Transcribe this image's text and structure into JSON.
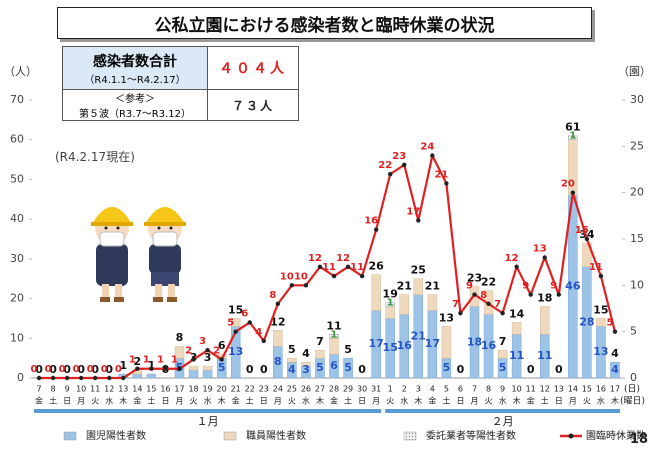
{
  "title": "公私立園における感染者数と臨時休業の状況",
  "summary": {
    "label": "感染者数合計",
    "period": "（R4.1.1〜R4.2.17）",
    "value_label": "４０４人",
    "ref_label": "＜参考＞",
    "ref_period": "第５波（R3.7〜R3.12）",
    "ref_value_label": "７３人"
  },
  "note": "(R4.2.17現在)",
  "page_number": "18",
  "chart_data": {
    "type": "bar",
    "stacked": true,
    "ylabel": "（人）",
    "y2label": "（園）",
    "xlabel": "(日)",
    "weekday_label": "(曜日)",
    "months": [
      "１月",
      "２月"
    ],
    "categories": [
      "7",
      "8",
      "9",
      "10",
      "11",
      "12",
      "13",
      "14",
      "15",
      "16",
      "17",
      "18",
      "19",
      "20",
      "21",
      "22",
      "23",
      "24",
      "25",
      "26",
      "27",
      "28",
      "29",
      "30",
      "31",
      "1",
      "2",
      "3",
      "4",
      "5",
      "6",
      "7",
      "8",
      "9",
      "10",
      "11",
      "12",
      "13",
      "14",
      "15",
      "16",
      "17"
    ],
    "weekdays": [
      "金",
      "土",
      "日",
      "月",
      "火",
      "水",
      "木",
      "金",
      "土",
      "日",
      "月",
      "火",
      "水",
      "木",
      "金",
      "土",
      "日",
      "月",
      "火",
      "水",
      "木",
      "金",
      "土",
      "日",
      "月",
      "火",
      "水",
      "木",
      "金",
      "土",
      "日",
      "月",
      "火",
      "水",
      "木",
      "金",
      "土",
      "日",
      "月",
      "火",
      "水",
      "木"
    ],
    "ylim": [
      0,
      70
    ],
    "yticks": [
      0,
      10,
      20,
      30,
      40,
      50,
      60,
      70
    ],
    "y2lim": [
      0,
      30
    ],
    "y2ticks": [
      0,
      5,
      10,
      15,
      20,
      25,
      30
    ],
    "series": [
      {
        "name": "園児陽性者数",
        "color": "#9dc3e6",
        "values": [
          0,
          0,
          0,
          0,
          0,
          0,
          1,
          1,
          1,
          0,
          5,
          2,
          2,
          5,
          13,
          0,
          0,
          8,
          4,
          3,
          5,
          6,
          5,
          0,
          17,
          15,
          16,
          21,
          17,
          5,
          0,
          18,
          16,
          5,
          11,
          0,
          11,
          0,
          46,
          28,
          13,
          4
        ]
      },
      {
        "name": "職員陽性者数",
        "color": "#eed9bf",
        "values": [
          0,
          0,
          0,
          0,
          0,
          0,
          0,
          1,
          0,
          0,
          3,
          1,
          1,
          1,
          2,
          0,
          0,
          4,
          1,
          1,
          2,
          4,
          0,
          0,
          9,
          3,
          5,
          4,
          4,
          8,
          0,
          5,
          6,
          2,
          3,
          0,
          7,
          0,
          14,
          6,
          2,
          0
        ]
      },
      {
        "name": "委託業者等陽性者数",
        "color": "#d9d9d9",
        "values": [
          0,
          0,
          0,
          0,
          0,
          0,
          0,
          0,
          0,
          0,
          0,
          0,
          0,
          0,
          0,
          0,
          0,
          0,
          0,
          0,
          0,
          1,
          0,
          0,
          0,
          1,
          0,
          0,
          0,
          0,
          0,
          0,
          0,
          0,
          0,
          0,
          0,
          0,
          1,
          0,
          0,
          0
        ]
      },
      {
        "name": "園臨時休業数",
        "type": "line",
        "axis": "y2",
        "color": "#e02020",
        "values": [
          0,
          0,
          0,
          0,
          0,
          0,
          0,
          1,
          1,
          1,
          1,
          2,
          3,
          2,
          5,
          6,
          4,
          8,
          10,
          10,
          12,
          11,
          12,
          11,
          16,
          22,
          23,
          17,
          24,
          21,
          7,
          9,
          8,
          7,
          12,
          9,
          13,
          9,
          20,
          15,
          11,
          5
        ]
      }
    ],
    "totals": [
      0,
      0,
      0,
      0,
      0,
      0,
      1,
      2,
      1,
      0,
      8,
      3,
      3,
      6,
      15,
      0,
      0,
      12,
      5,
      4,
      7,
      11,
      5,
      0,
      26,
      19,
      21,
      25,
      21,
      13,
      0,
      23,
      22,
      7,
      14,
      0,
      18,
      0,
      61,
      34,
      15,
      4
    ]
  }
}
